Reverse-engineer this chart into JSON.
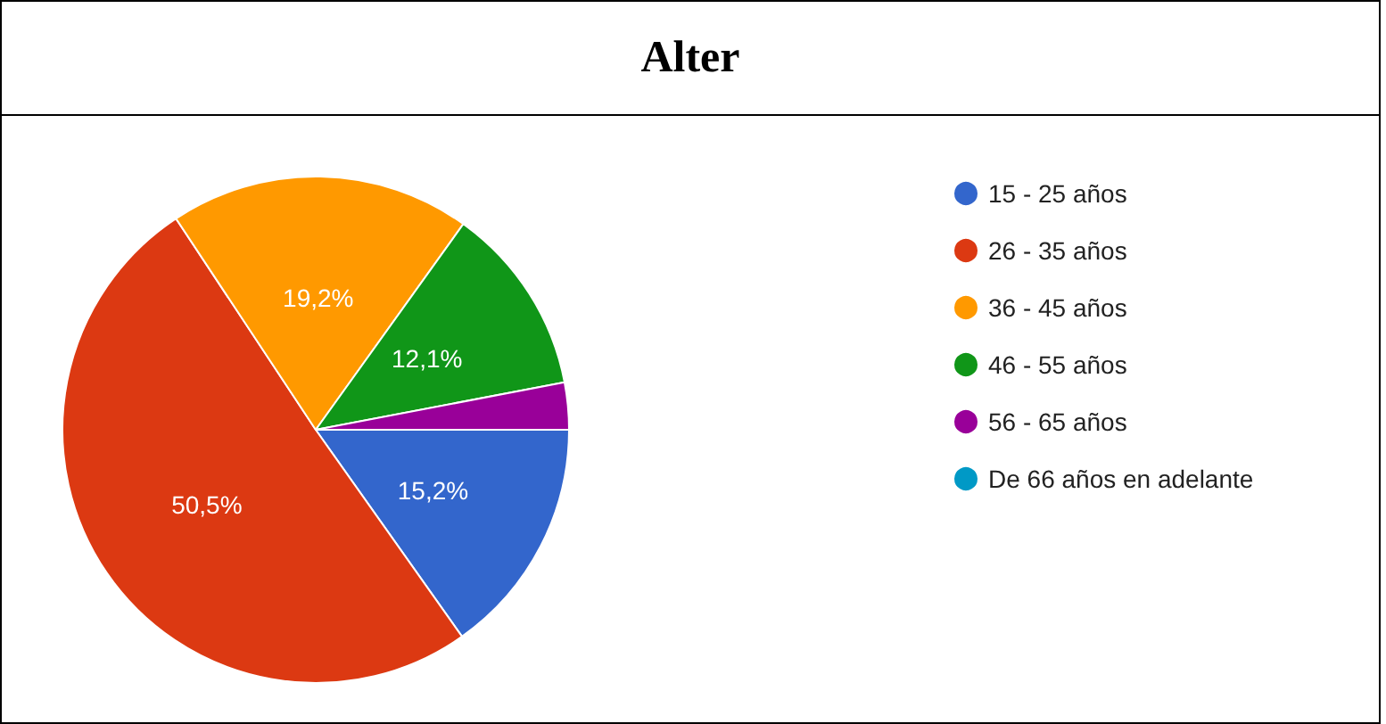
{
  "chart_data": {
    "type": "pie",
    "title": "Alter",
    "categories": [
      "15 - 25 años",
      "26 - 35 años",
      "36 - 45 años",
      "46 - 55 años",
      "56 - 65 años",
      "De 66 años en adelante"
    ],
    "values": [
      15.2,
      50.5,
      19.2,
      12.1,
      3.0,
      0
    ],
    "colors": [
      "#3366cc",
      "#dc3912",
      "#ff9900",
      "#109618",
      "#990099",
      "#0099c6"
    ],
    "value_labels": [
      "15,2%",
      "50,5%",
      "19,2%",
      "12,1%",
      null,
      null
    ],
    "legend": "right"
  }
}
